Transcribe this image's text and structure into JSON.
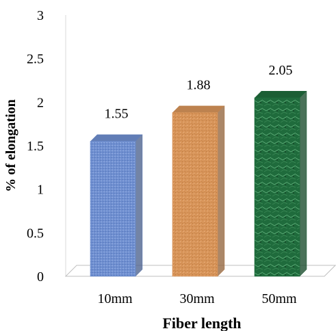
{
  "chart_data": {
    "type": "bar",
    "title": "",
    "xlabel": "Fiber length",
    "ylabel": "% of elongation",
    "categories": [
      "10mm",
      "30mm",
      "50mm"
    ],
    "values": [
      1.55,
      1.88,
      2.05
    ],
    "data_labels": [
      "1.55",
      "1.88",
      "2.05"
    ],
    "y_ticks": [
      "0",
      "0.5",
      "1",
      "1.5",
      "2",
      "2.5",
      "3"
    ],
    "ylim": [
      0,
      3
    ],
    "grid": false,
    "legend": "none",
    "bar_colors": [
      "#6f8fd0",
      "#d8955a",
      "#1f6b3c"
    ]
  }
}
